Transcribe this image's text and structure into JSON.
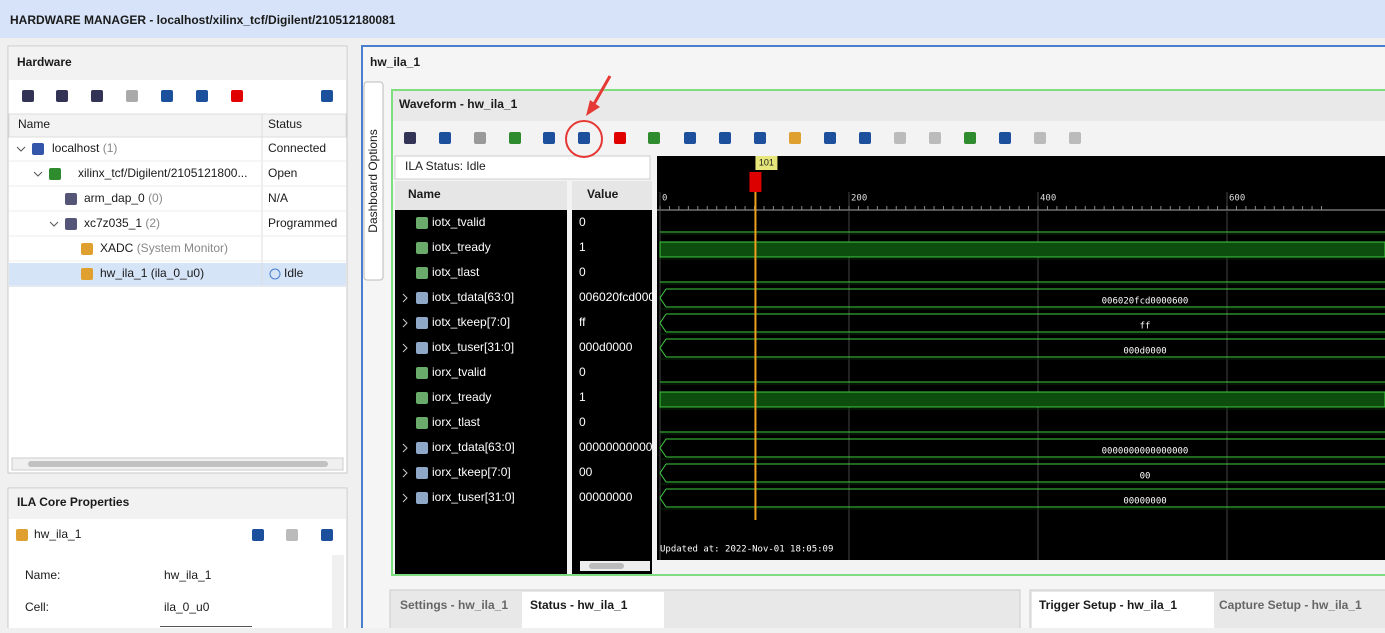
{
  "header": {
    "title": "HARDWARE MANAGER - localhost/xilinx_tcf/Digilent/210512180081"
  },
  "hardware": {
    "title": "Hardware",
    "columns": [
      "Name",
      "Status"
    ],
    "rows": [
      {
        "name": "localhost",
        "extra": "(1)",
        "status": "Connected"
      },
      {
        "name": "xilinx_tcf/Digilent/2105121800...",
        "status": "Open"
      },
      {
        "name": "arm_dap_0",
        "extra": "(0)",
        "status": "N/A"
      },
      {
        "name": "xc7z035_1",
        "extra": "(2)",
        "status": "Programmed"
      },
      {
        "name": "XADC",
        "extra": "(System Monitor)"
      },
      {
        "name": "hw_ila_1 (ila_0_u0)",
        "status": "Idle"
      }
    ]
  },
  "ila_properties": {
    "title": "ILA Core Properties",
    "item": "hw_ila_1",
    "fields": [
      {
        "label": "Name:",
        "value": "hw_ila_1"
      },
      {
        "label": "Cell:",
        "value": "ila_0_u0"
      }
    ]
  },
  "main_tab": "hw_ila_1",
  "sidebar_tab": "Dashboard Options",
  "waveform": {
    "title": "Waveform - hw_ila_1",
    "status": "ILA Status: Idle",
    "columns": [
      "Name",
      "Value"
    ],
    "ticks": [
      0,
      200,
      400,
      600
    ],
    "cursor": 101,
    "signals": [
      {
        "name": "iotx_tvalid",
        "value": "0"
      },
      {
        "name": "iotx_tready",
        "value": "1"
      },
      {
        "name": "iotx_tlast",
        "value": "0"
      },
      {
        "name": "iotx_tdata[63:0]",
        "value": "006020fcd000",
        "wave": "006020fcd0000600"
      },
      {
        "name": "iotx_tkeep[7:0]",
        "value": "ff",
        "wave": "ff"
      },
      {
        "name": "iotx_tuser[31:0]",
        "value": "000d0000",
        "wave": "000d0000"
      },
      {
        "name": "iorx_tvalid",
        "value": "0"
      },
      {
        "name": "iorx_tready",
        "value": "1"
      },
      {
        "name": "iorx_tlast",
        "value": "0"
      },
      {
        "name": "iorx_tdata[63:0]",
        "value": "00000000000",
        "wave": "0000000000000000"
      },
      {
        "name": "iorx_tkeep[7:0]",
        "value": "00",
        "wave": "00"
      },
      {
        "name": "iorx_tuser[31:0]",
        "value": "00000000",
        "wave": "00000000"
      }
    ],
    "updated": "Updated at: 2022-Nov-01 18:05:09"
  },
  "bottom_tabs": [
    "Settings - hw_ila_1",
    "Status - hw_ila_1",
    "Trigger Setup - hw_ila_1",
    "Capture Setup - hw_ila_1"
  ]
}
